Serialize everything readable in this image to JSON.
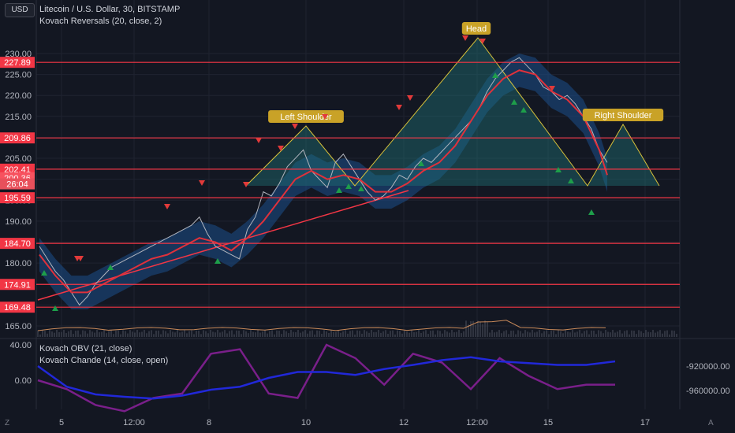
{
  "header": {
    "currency_button": "USD",
    "title": "Litecoin / U.S. Dollar, 30, BITSTAMP",
    "indicator": "Kovach Reversals (20, close, 2)",
    "sub_indicator_1": "Kovach OBV (21, close)",
    "sub_indicator_2": "Kovach Chande (14, close, open)"
  },
  "corners": {
    "bottom_left": "Z",
    "bottom_right": "A"
  },
  "colors": {
    "background": "#131722",
    "grid": "#1f2330",
    "level_line": "#f23645",
    "price": "#b2b5be",
    "ma": "#e0313b",
    "band": "#1b4f8a",
    "pattern_fill": "#1f6f73",
    "pattern_line": "#d8c23a",
    "label_bg": "#c9a227",
    "up_arrow": "#1e9e4a",
    "down_arrow": "#e23a3a",
    "obv": "#2128d9",
    "chande": "#7a1f8a",
    "volume": "#c98a5a"
  },
  "chart_data": [
    {
      "type": "line",
      "title": "Litecoin / U.S. Dollar, 30, BITSTAMP",
      "x_ticks": [
        "5",
        "12:00",
        "8",
        "10",
        "12",
        "12:00",
        "15",
        "17"
      ],
      "y_ticks": [
        165,
        170,
        175,
        180,
        185,
        190,
        195,
        200,
        205,
        210,
        215,
        220,
        225,
        230
      ],
      "ylim": [
        162,
        236
      ],
      "grid": true,
      "price_labels": [
        {
          "value": 227.89,
          "label": "227.89",
          "kind": "level"
        },
        {
          "value": 209.86,
          "label": "209.86",
          "kind": "level"
        },
        {
          "value": 202.41,
          "label": "202.41",
          "kind": "level"
        },
        {
          "value": 200.36,
          "label": "200.36",
          "kind": "current"
        },
        {
          "value": 198.9,
          "label": "26:04",
          "kind": "timer"
        },
        {
          "value": 195.59,
          "label": "195.59",
          "kind": "level"
        },
        {
          "value": 184.7,
          "label": "184.70",
          "kind": "level"
        },
        {
          "value": 174.91,
          "label": "174.91",
          "kind": "level"
        },
        {
          "value": 169.48,
          "label": "169.48",
          "kind": "level"
        }
      ],
      "series": [
        {
          "x": [
            0,
            2,
            4,
            6,
            8,
            10,
            12,
            14,
            16,
            18,
            20,
            22,
            24,
            26,
            28,
            30,
            32,
            34,
            36,
            38,
            40,
            42,
            44,
            46,
            48,
            50,
            52,
            54,
            56,
            58,
            60,
            62,
            64,
            66,
            68,
            70,
            72,
            74,
            76,
            78,
            80,
            82,
            84,
            86,
            88,
            90,
            92,
            94,
            96,
            98,
            100,
            102,
            104,
            106,
            108,
            110,
            112,
            114,
            116,
            118,
            120,
            122,
            124,
            126,
            128,
            130,
            132,
            134,
            136,
            138,
            140,
            142
          ],
          "values": [
            184,
            181,
            178,
            176,
            173,
            170,
            172,
            175,
            177,
            179,
            180,
            181,
            182,
            183,
            184,
            185,
            186,
            187,
            188,
            189,
            191,
            187,
            184,
            183,
            182,
            181,
            188,
            191,
            197,
            196,
            199,
            203,
            205,
            207,
            202,
            200,
            198,
            204,
            206,
            203,
            200,
            197,
            195,
            196,
            198,
            201,
            200,
            203,
            205,
            204,
            206,
            208,
            210,
            212,
            214,
            217,
            221,
            224,
            226,
            228,
            229,
            227,
            225,
            222,
            221,
            219,
            220,
            218,
            215,
            212,
            207,
            204
          ]
        },
        {
          "x": [
            0,
            4,
            8,
            12,
            16,
            20,
            24,
            28,
            32,
            36,
            40,
            44,
            48,
            52,
            56,
            60,
            64,
            68,
            72,
            76,
            80,
            84,
            88,
            92,
            96,
            100,
            104,
            108,
            112,
            116,
            120,
            124,
            128,
            132,
            136,
            140,
            142
          ],
          "values": [
            182,
            177,
            173,
            173,
            175,
            177,
            179,
            181,
            182,
            184,
            186,
            185,
            183,
            186,
            190,
            195,
            200,
            202,
            200,
            201,
            200,
            197,
            197,
            199,
            202,
            204,
            208,
            214,
            220,
            224,
            226,
            225,
            221,
            219,
            215,
            207,
            201
          ]
        }
      ],
      "pattern_labels": [
        "Left Shoulder",
        "Head",
        "Right Shoulder"
      ]
    },
    {
      "type": "line",
      "series": [
        {
          "x": [
            0,
            10,
            20,
            30,
            40,
            50,
            60,
            70,
            80,
            90,
            100,
            110,
            120,
            130,
            140,
            150,
            160,
            170,
            180,
            190,
            200
          ],
          "values": [
            -920000,
            -955000,
            -968000,
            -972000,
            -975000,
            -970000,
            -960000,
            -955000,
            -940000,
            -930000,
            -930000,
            -935000,
            -925000,
            -918000,
            -910000,
            -905000,
            -912000,
            -915000,
            -918000,
            -918000,
            -912000
          ]
        },
        {
          "x": [
            0,
            10,
            20,
            30,
            40,
            50,
            60,
            70,
            80,
            90,
            100,
            110,
            120,
            130,
            140,
            150,
            160,
            170,
            180,
            190,
            200
          ],
          "values": [
            0,
            -10,
            -28,
            -35,
            -20,
            -15,
            30,
            35,
            -15,
            -20,
            40,
            25,
            -5,
            30,
            20,
            -10,
            25,
            5,
            -10,
            -5,
            -5
          ]
        }
      ],
      "left_ticks": [
        "40.00",
        "0.00"
      ],
      "right_ticks": [
        "-920000.00",
        "-960000.00"
      ]
    }
  ]
}
